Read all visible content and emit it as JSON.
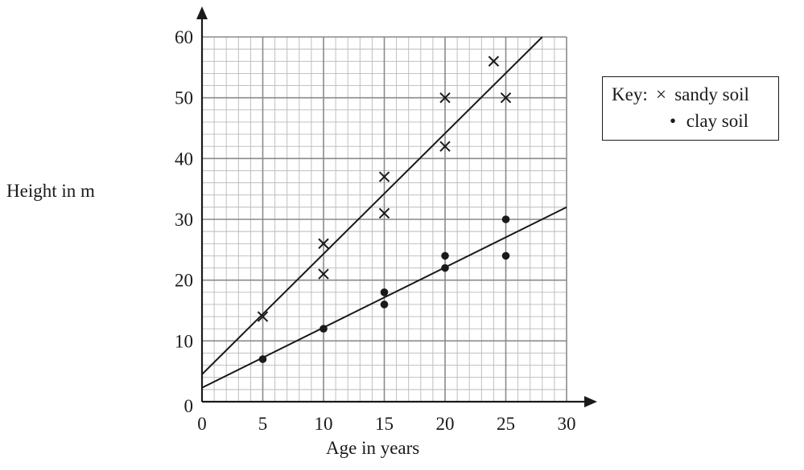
{
  "chart_data": {
    "type": "scatter",
    "xlabel": "Age in years",
    "ylabel": "Height in m",
    "xlim": [
      0,
      30
    ],
    "ylim": [
      0,
      60
    ],
    "x_ticks": [
      0,
      5,
      10,
      15,
      20,
      25,
      30
    ],
    "y_ticks": [
      0,
      10,
      20,
      30,
      40,
      50,
      60
    ],
    "x_tick_labels": [
      "0",
      "5",
      "10",
      "15",
      "20",
      "25",
      "30"
    ],
    "y_tick_labels": [
      "0",
      "10",
      "20",
      "30",
      "40",
      "50",
      "60"
    ],
    "grid": true,
    "legend_position": "right",
    "series": [
      {
        "name": "sandy soil",
        "marker": "cross",
        "points": [
          [
            5,
            14
          ],
          [
            10,
            26
          ],
          [
            10,
            21
          ],
          [
            15,
            37
          ],
          [
            15,
            31
          ],
          [
            20,
            50
          ],
          [
            20,
            42
          ],
          [
            24,
            56
          ],
          [
            25,
            50
          ]
        ],
        "fit_line": [
          [
            0,
            4.5
          ],
          [
            28,
            60
          ]
        ]
      },
      {
        "name": "clay soil",
        "marker": "dot",
        "points": [
          [
            5,
            7
          ],
          [
            10,
            12
          ],
          [
            15,
            18
          ],
          [
            15,
            16
          ],
          [
            20,
            24
          ],
          [
            20,
            22
          ],
          [
            25,
            30
          ],
          [
            25,
            24
          ]
        ],
        "fit_line": [
          [
            0,
            2.3
          ],
          [
            30,
            32
          ]
        ]
      }
    ]
  },
  "key": {
    "prefix": "Key:",
    "marker1": "×",
    "label1": "sandy soil",
    "marker2": "•",
    "label2": "clay soil"
  }
}
